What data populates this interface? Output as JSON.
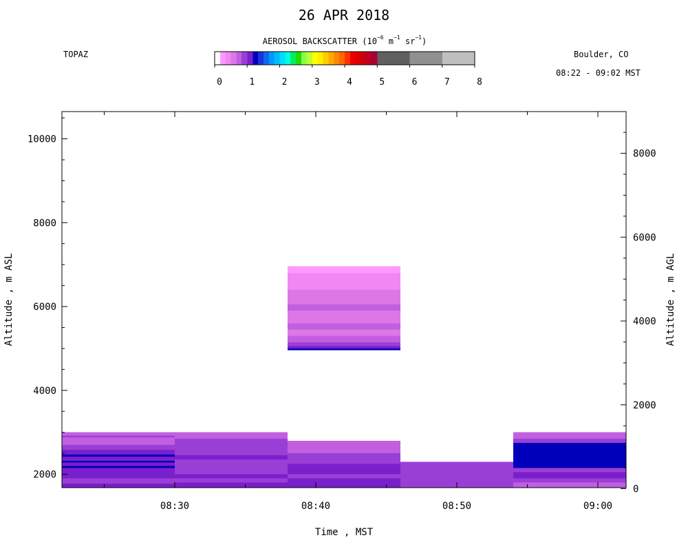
{
  "chart_title": "26 APR 2018",
  "instrument": "TOPAZ",
  "location": "Boulder, CO",
  "time_range": "08:22 - 09:02 MST",
  "colorbar": {
    "title_parts": [
      "AEROSOL BACKSCATTER (10",
      "−6",
      " m",
      "−1",
      " sr",
      "−1",
      ")"
    ],
    "ticks": [
      "0",
      "1",
      "2",
      "3",
      "4",
      "5",
      "6",
      "7",
      "8"
    ],
    "range": [
      0,
      8
    ],
    "bins": [
      {
        "from": 0.0,
        "to": 0.17,
        "color": "#ffffff"
      },
      {
        "from": 0.17,
        "to": 0.33,
        "color": "#ff99ff"
      },
      {
        "from": 0.33,
        "to": 0.5,
        "color": "#ef88f3"
      },
      {
        "from": 0.5,
        "to": 0.67,
        "color": "#de77e6"
      },
      {
        "from": 0.67,
        "to": 0.83,
        "color": "#c25fe0"
      },
      {
        "from": 0.83,
        "to": 1.0,
        "color": "#9a3fd6"
      },
      {
        "from": 1.0,
        "to": 1.17,
        "color": "#7a1fcc"
      },
      {
        "from": 1.17,
        "to": 1.33,
        "color": "#0000bb"
      },
      {
        "from": 1.33,
        "to": 1.5,
        "color": "#1a33dd"
      },
      {
        "from": 1.5,
        "to": 1.67,
        "color": "#1166ee"
      },
      {
        "from": 1.67,
        "to": 1.83,
        "color": "#0099ff"
      },
      {
        "from": 1.83,
        "to": 2.0,
        "color": "#00bbff"
      },
      {
        "from": 2.0,
        "to": 2.17,
        "color": "#00ddff"
      },
      {
        "from": 2.17,
        "to": 2.33,
        "color": "#00ffdd"
      },
      {
        "from": 2.33,
        "to": 2.5,
        "color": "#00ee66"
      },
      {
        "from": 2.5,
        "to": 2.67,
        "color": "#22dd00"
      },
      {
        "from": 2.67,
        "to": 2.83,
        "color": "#88ff44"
      },
      {
        "from": 2.83,
        "to": 3.0,
        "color": "#bbff33"
      },
      {
        "from": 3.0,
        "to": 3.17,
        "color": "#ffff00"
      },
      {
        "from": 3.17,
        "to": 3.33,
        "color": "#ffee00"
      },
      {
        "from": 3.33,
        "to": 3.5,
        "color": "#ffcc00"
      },
      {
        "from": 3.5,
        "to": 3.67,
        "color": "#ffaa00"
      },
      {
        "from": 3.67,
        "to": 3.83,
        "color": "#ff8800"
      },
      {
        "from": 3.83,
        "to": 4.0,
        "color": "#ff6600"
      },
      {
        "from": 4.0,
        "to": 4.17,
        "color": "#ff3300"
      },
      {
        "from": 4.17,
        "to": 4.33,
        "color": "#ee0000"
      },
      {
        "from": 4.33,
        "to": 4.5,
        "color": "#dd0000"
      },
      {
        "from": 4.5,
        "to": 4.67,
        "color": "#cc0011"
      },
      {
        "from": 4.67,
        "to": 4.83,
        "color": "#bb0022"
      },
      {
        "from": 4.83,
        "to": 5.0,
        "color": "#aa0033"
      },
      {
        "from": 5.0,
        "to": 6.0,
        "color": "#606060"
      },
      {
        "from": 6.0,
        "to": 7.0,
        "color": "#909090"
      },
      {
        "from": 7.0,
        "to": 8.0,
        "color": "#c0c0c0"
      }
    ]
  },
  "axes": {
    "x_label": "Time , MST",
    "y_left_label": "Altitude , m ASL",
    "y_right_label": "Altitude , m AGL",
    "x_ticks": [
      "08:30",
      "08:40",
      "08:50",
      "09:00"
    ],
    "y_left_ticks": [
      "2000",
      "4000",
      "6000",
      "8000",
      "10000"
    ],
    "y_right_ticks": [
      "0",
      "2000",
      "4000",
      "6000",
      "8000"
    ]
  },
  "chart_data": {
    "type": "heatmap",
    "title": "26 APR 2018",
    "xlabel": "Time , MST",
    "ylabel": "Altitude , m ASL",
    "y2label": "Altitude , m AGL",
    "x_range_min": [
      502,
      542
    ],
    "y_range_m_asl": [
      1680,
      10650
    ],
    "y2_offset_m": 1655,
    "value_units": "AEROSOL BACKSCATTER (10^-6 m^-1 sr^-1)",
    "x_ticks_min": [
      510,
      520,
      530,
      540
    ],
    "y_ticks_m_asl": [
      2000,
      4000,
      6000,
      8000,
      10000
    ],
    "y2_ticks_m_agl": [
      0,
      2000,
      4000,
      6000,
      8000
    ],
    "segments": [
      {
        "t_start": "08:22",
        "t_end": "08:30",
        "layers": [
          {
            "bottom": 1680,
            "top": 1780,
            "value": 1.1
          },
          {
            "bottom": 1780,
            "top": 1900,
            "value": 0.9
          },
          {
            "bottom": 1900,
            "top": 2000,
            "value": 1.0
          },
          {
            "bottom": 2000,
            "top": 2150,
            "value": 1.1
          },
          {
            "bottom": 2150,
            "top": 2200,
            "value": 1.3
          },
          {
            "bottom": 2200,
            "top": 2280,
            "value": 1.0
          },
          {
            "bottom": 2280,
            "top": 2320,
            "value": 1.2
          },
          {
            "bottom": 2320,
            "top": 2420,
            "value": 1.0
          },
          {
            "bottom": 2420,
            "top": 2470,
            "value": 1.25
          },
          {
            "bottom": 2470,
            "top": 2580,
            "value": 1.05
          },
          {
            "bottom": 2580,
            "top": 2700,
            "value": 0.9
          },
          {
            "bottom": 2700,
            "top": 2880,
            "value": 0.8
          },
          {
            "bottom": 2880,
            "top": 2920,
            "value": 0.95
          },
          {
            "bottom": 2920,
            "top": 3000,
            "value": 0.8
          }
        ]
      },
      {
        "t_start": "08:30",
        "t_end": "08:38",
        "layers": [
          {
            "bottom": 1680,
            "top": 1800,
            "value": 1.0
          },
          {
            "bottom": 1800,
            "top": 1900,
            "value": 0.85
          },
          {
            "bottom": 1900,
            "top": 2000,
            "value": 1.05
          },
          {
            "bottom": 2000,
            "top": 2100,
            "value": 0.9
          },
          {
            "bottom": 2100,
            "top": 2250,
            "value": 0.85
          },
          {
            "bottom": 2250,
            "top": 2350,
            "value": 0.95
          },
          {
            "bottom": 2350,
            "top": 2450,
            "value": 1.05
          },
          {
            "bottom": 2450,
            "top": 2550,
            "value": 0.9
          },
          {
            "bottom": 2550,
            "top": 2700,
            "value": 0.85
          },
          {
            "bottom": 2700,
            "top": 2850,
            "value": 0.9
          },
          {
            "bottom": 2850,
            "top": 2950,
            "value": 0.75
          },
          {
            "bottom": 2950,
            "top": 3000,
            "value": 0.7
          }
        ]
      },
      {
        "t_start": "08:38",
        "t_end": "08:46",
        "layers": [
          {
            "bottom": 1680,
            "top": 1800,
            "value": 1.0
          },
          {
            "bottom": 1800,
            "top": 1900,
            "value": 1.05
          },
          {
            "bottom": 1900,
            "top": 2000,
            "value": 0.95
          },
          {
            "bottom": 2000,
            "top": 2150,
            "value": 1.05
          },
          {
            "bottom": 2150,
            "top": 2250,
            "value": 1.1
          },
          {
            "bottom": 2250,
            "top": 2350,
            "value": 0.95
          },
          {
            "bottom": 2350,
            "top": 2500,
            "value": 0.9
          },
          {
            "bottom": 2500,
            "top": 2800,
            "value": 0.75
          },
          {
            "bottom": 4960,
            "top": 5000,
            "value": 1.25
          },
          {
            "bottom": 5000,
            "top": 5060,
            "value": 1.0
          },
          {
            "bottom": 5060,
            "top": 5150,
            "value": 0.85
          },
          {
            "bottom": 5150,
            "top": 5300,
            "value": 0.75
          },
          {
            "bottom": 5300,
            "top": 5450,
            "value": 0.6
          },
          {
            "bottom": 5450,
            "top": 5600,
            "value": 0.8
          },
          {
            "bottom": 5600,
            "top": 5750,
            "value": 0.65
          },
          {
            "bottom": 5750,
            "top": 5900,
            "value": 0.55
          },
          {
            "bottom": 5900,
            "top": 6050,
            "value": 0.7
          },
          {
            "bottom": 6050,
            "top": 6200,
            "value": 0.5
          },
          {
            "bottom": 6200,
            "top": 6400,
            "value": 0.6
          },
          {
            "bottom": 6400,
            "top": 6600,
            "value": 0.45
          },
          {
            "bottom": 6600,
            "top": 6800,
            "value": 0.35
          },
          {
            "bottom": 6800,
            "top": 6960,
            "value": 0.25
          }
        ]
      },
      {
        "t_start": "08:46",
        "t_end": "08:54",
        "layers": [
          {
            "bottom": 1680,
            "top": 1800,
            "value": 0.95
          },
          {
            "bottom": 1800,
            "top": 1950,
            "value": 0.9
          },
          {
            "bottom": 1950,
            "top": 2100,
            "value": 0.95
          },
          {
            "bottom": 2100,
            "top": 2200,
            "value": 0.85
          },
          {
            "bottom": 2200,
            "top": 2300,
            "value": 0.9
          }
        ]
      },
      {
        "t_start": "08:54",
        "t_end": "09:02",
        "layers": [
          {
            "bottom": 1680,
            "top": 1800,
            "value": 0.75
          },
          {
            "bottom": 1800,
            "top": 1900,
            "value": 0.95
          },
          {
            "bottom": 1900,
            "top": 2050,
            "value": 1.05
          },
          {
            "bottom": 2050,
            "top": 2150,
            "value": 0.9
          },
          {
            "bottom": 2150,
            "top": 2400,
            "value": 1.25
          },
          {
            "bottom": 2400,
            "top": 2750,
            "value": 1.2
          },
          {
            "bottom": 2750,
            "top": 2850,
            "value": 0.9
          },
          {
            "bottom": 2850,
            "top": 2950,
            "value": 0.8
          },
          {
            "bottom": 2950,
            "top": 3000,
            "value": 0.7
          }
        ]
      }
    ]
  }
}
